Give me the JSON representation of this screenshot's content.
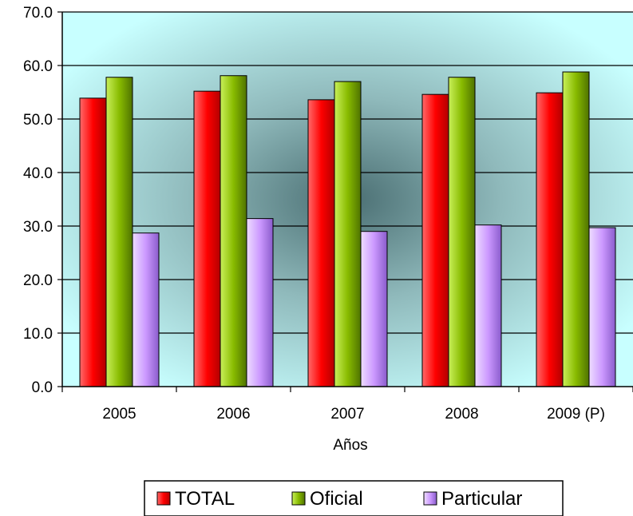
{
  "chart_data": {
    "type": "bar",
    "title": "",
    "xlabel": "Años",
    "ylabel": "",
    "ylim": [
      0,
      70
    ],
    "yticks": [
      "0.0",
      "10.0",
      "20.0",
      "30.0",
      "40.0",
      "50.0",
      "60.0",
      "70.0"
    ],
    "categories": [
      "2005",
      "2006",
      "2007",
      "2008",
      "2009 (P)"
    ],
    "series": [
      {
        "name": "TOTAL",
        "color": "#ff0000",
        "values": [
          53.9,
          55.2,
          53.6,
          54.6,
          54.9
        ]
      },
      {
        "name": "Oficial",
        "color": "#88bb00",
        "values": [
          57.8,
          58.1,
          57.0,
          57.8,
          58.8
        ]
      },
      {
        "name": "Particular",
        "color": "#cc99ff",
        "values": [
          28.7,
          31.4,
          29.0,
          30.2,
          29.7
        ]
      }
    ],
    "grid": true,
    "legend_position": "bottom"
  }
}
